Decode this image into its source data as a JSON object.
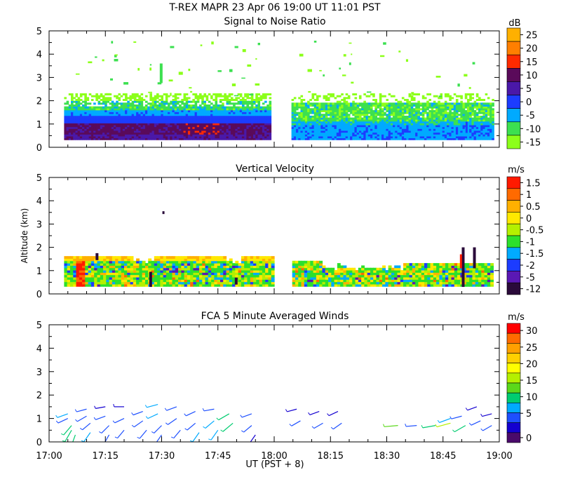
{
  "title_line": "T-REX  MAPR 23 Apr 06  19:00 UT  11:01  PST",
  "xlabel": "UT  (PST + 8)",
  "ylabel": "Altitude (km)",
  "xticks": [
    "17:00",
    "17:15",
    "17:30",
    "17:45",
    "18:00",
    "18:15",
    "18:30",
    "18:45",
    "19:00"
  ],
  "xrange_minutes": [
    0,
    120
  ],
  "data_gap_minutes": [
    60,
    64
  ],
  "chart_data": [
    {
      "type": "heatmap",
      "title": "Signal to Noise Ratio",
      "xlabel": "UT  (PST + 8)",
      "ylabel": "Altitude (km)",
      "ylim": [
        0,
        5
      ],
      "yticks": [
        "0",
        "1",
        "2",
        "3",
        "4",
        "5"
      ],
      "colorbar_unit": "dB",
      "colorbar_labels": [
        "25",
        "20",
        "15",
        "10",
        "5",
        "0",
        "-5",
        "-10",
        "-15"
      ],
      "colorbar_colors": [
        "#ffb000",
        "#ff7f00",
        "#ff2a00",
        "#5a0a5a",
        "#4a18a8",
        "#1c3cff",
        "#00aaff",
        "#3ce050",
        "#8cff1a"
      ],
      "field_summary": [
        {
          "range_minutes": [
            4,
            59
          ],
          "altitude_km": [
            0.6,
            1.0
          ],
          "value_db": 8
        },
        {
          "range_minutes": [
            4,
            59
          ],
          "altitude_km": [
            1.0,
            1.3
          ],
          "value_db": 0
        },
        {
          "range_minutes": [
            4,
            59
          ],
          "altitude_km": [
            1.3,
            2.1
          ],
          "value_db": -10
        },
        {
          "range_minutes": [
            64,
            118
          ],
          "altitude_km": [
            0.3,
            1.0
          ],
          "value_db": -5
        },
        {
          "range_minutes": [
            64,
            118
          ],
          "altitude_km": [
            1.0,
            2.0
          ],
          "value_db": -12
        }
      ]
    },
    {
      "type": "heatmap",
      "title": "Vertical Velocity",
      "xlabel": "UT  (PST + 8)",
      "ylabel": "Altitude (km)",
      "ylim": [
        0,
        5
      ],
      "yticks": [
        "0",
        "1",
        "2",
        "3",
        "4",
        "5"
      ],
      "colorbar_unit": "m/s",
      "colorbar_labels": [
        "1.5",
        "1",
        "0.5",
        "0",
        "-0.5",
        "-1",
        "-1.5",
        "-2",
        "-5",
        "-12"
      ],
      "colorbar_colors": [
        "#ff1a00",
        "#ff6a00",
        "#ffb000",
        "#ffe800",
        "#b4f000",
        "#2ce02c",
        "#00aaff",
        "#1c3cff",
        "#5a18b4",
        "#2a0a3a"
      ],
      "field_summary": [
        {
          "range_minutes": [
            4,
            59
          ],
          "altitude_km": [
            0.3,
            1.6
          ],
          "value_ms": -0.5
        },
        {
          "range_minutes": [
            64,
            118
          ],
          "altitude_km": [
            0.3,
            1.4
          ],
          "value_ms": -0.5
        }
      ]
    },
    {
      "type": "scatter",
      "title": "FCA 5 Minute Averaged Winds",
      "xlabel": "UT  (PST + 8)",
      "ylabel": "Altitude (km)",
      "ylim": [
        0,
        5
      ],
      "yticks": [
        "0",
        "1",
        "2",
        "3",
        "4",
        "5"
      ],
      "colorbar_unit": "m/s",
      "colorbar_labels": [
        "30",
        "25",
        "20",
        "15",
        "10",
        "5",
        "0"
      ],
      "colorbar_colors": [
        "#ff0000",
        "#ff6a00",
        "#ffa000",
        "#ffd000",
        "#ffff00",
        "#b4f000",
        "#5ad81a",
        "#00cc70",
        "#00aaff",
        "#1e50ff",
        "#1400d0",
        "#4a0a6a"
      ],
      "winds": [
        {
          "t": 5,
          "z": 1.0,
          "dir": 245,
          "spd": 6
        },
        {
          "t": 5,
          "z": 1.2,
          "dir": 250,
          "spd": 7
        },
        {
          "t": 6,
          "z": 0.7,
          "dir": 220,
          "spd": 10
        },
        {
          "t": 6,
          "z": 0.5,
          "dir": 210,
          "spd": 12
        },
        {
          "t": 7,
          "z": 0.3,
          "dir": 200,
          "spd": 11
        },
        {
          "t": 10,
          "z": 1.4,
          "dir": 255,
          "spd": 5
        },
        {
          "t": 10,
          "z": 1.1,
          "dir": 240,
          "spd": 6
        },
        {
          "t": 11,
          "z": 0.8,
          "dir": 230,
          "spd": 5
        },
        {
          "t": 11,
          "z": 0.4,
          "dir": 215,
          "spd": 7
        },
        {
          "t": 15,
          "z": 1.5,
          "dir": 260,
          "spd": 4
        },
        {
          "t": 15,
          "z": 1.1,
          "dir": 250,
          "spd": 5
        },
        {
          "t": 16,
          "z": 0.7,
          "dir": 225,
          "spd": 6
        },
        {
          "t": 16,
          "z": 0.3,
          "dir": 210,
          "spd": 5
        },
        {
          "t": 20,
          "z": 1.5,
          "dir": 270,
          "spd": 4
        },
        {
          "t": 20,
          "z": 1.0,
          "dir": 245,
          "spd": 5
        },
        {
          "t": 20,
          "z": 0.5,
          "dir": 220,
          "spd": 5
        },
        {
          "t": 25,
          "z": 1.3,
          "dir": 250,
          "spd": 5
        },
        {
          "t": 25,
          "z": 0.9,
          "dir": 235,
          "spd": 6
        },
        {
          "t": 26,
          "z": 0.5,
          "dir": 220,
          "spd": 6
        },
        {
          "t": 29,
          "z": 1.6,
          "dir": 255,
          "spd": 8
        },
        {
          "t": 29,
          "z": 1.2,
          "dir": 245,
          "spd": 7
        },
        {
          "t": 30,
          "z": 0.7,
          "dir": 225,
          "spd": 6
        },
        {
          "t": 30,
          "z": 0.3,
          "dir": 215,
          "spd": 5
        },
        {
          "t": 34,
          "z": 1.5,
          "dir": 250,
          "spd": 6
        },
        {
          "t": 34,
          "z": 1.0,
          "dir": 235,
          "spd": 6
        },
        {
          "t": 35,
          "z": 0.5,
          "dir": 220,
          "spd": 5
        },
        {
          "t": 39,
          "z": 1.3,
          "dir": 245,
          "spd": 5
        },
        {
          "t": 39,
          "z": 0.8,
          "dir": 230,
          "spd": 6
        },
        {
          "t": 40,
          "z": 0.4,
          "dir": 215,
          "spd": 7
        },
        {
          "t": 44,
          "z": 1.4,
          "dir": 260,
          "spd": 5
        },
        {
          "t": 44,
          "z": 0.9,
          "dir": 230,
          "spd": 8
        },
        {
          "t": 45,
          "z": 0.5,
          "dir": 215,
          "spd": 9
        },
        {
          "t": 48,
          "z": 1.2,
          "dir": 240,
          "spd": 10
        },
        {
          "t": 49,
          "z": 0.8,
          "dir": 230,
          "spd": 12
        },
        {
          "t": 54,
          "z": 1.2,
          "dir": 250,
          "spd": 5
        },
        {
          "t": 54,
          "z": 0.7,
          "dir": 230,
          "spd": 5
        },
        {
          "t": 55,
          "z": 0.3,
          "dir": 215,
          "spd": 4
        },
        {
          "t": 66,
          "z": 1.4,
          "dir": 255,
          "spd": 4
        },
        {
          "t": 67,
          "z": 0.9,
          "dir": 240,
          "spd": 5
        },
        {
          "t": 72,
          "z": 1.3,
          "dir": 250,
          "spd": 4
        },
        {
          "t": 73,
          "z": 0.8,
          "dir": 240,
          "spd": 5
        },
        {
          "t": 77,
          "z": 1.3,
          "dir": 245,
          "spd": 4
        },
        {
          "t": 78,
          "z": 0.8,
          "dir": 235,
          "spd": 5
        },
        {
          "t": 93,
          "z": 0.7,
          "dir": 265,
          "spd": 14
        },
        {
          "t": 98,
          "z": 0.7,
          "dir": 265,
          "spd": 6
        },
        {
          "t": 103,
          "z": 0.7,
          "dir": 260,
          "spd": 12
        },
        {
          "t": 107,
          "z": 0.8,
          "dir": 255,
          "spd": 15
        },
        {
          "t": 107,
          "z": 1.0,
          "dir": 250,
          "spd": 9
        },
        {
          "t": 110,
          "z": 1.1,
          "dir": 255,
          "spd": 6
        },
        {
          "t": 111,
          "z": 0.7,
          "dir": 240,
          "spd": 11
        },
        {
          "t": 114,
          "z": 1.5,
          "dir": 250,
          "spd": 4
        },
        {
          "t": 115,
          "z": 0.9,
          "dir": 245,
          "spd": 5
        },
        {
          "t": 118,
          "z": 1.2,
          "dir": 255,
          "spd": 4
        },
        {
          "t": 118,
          "z": 0.7,
          "dir": 240,
          "spd": 5
        }
      ]
    }
  ]
}
